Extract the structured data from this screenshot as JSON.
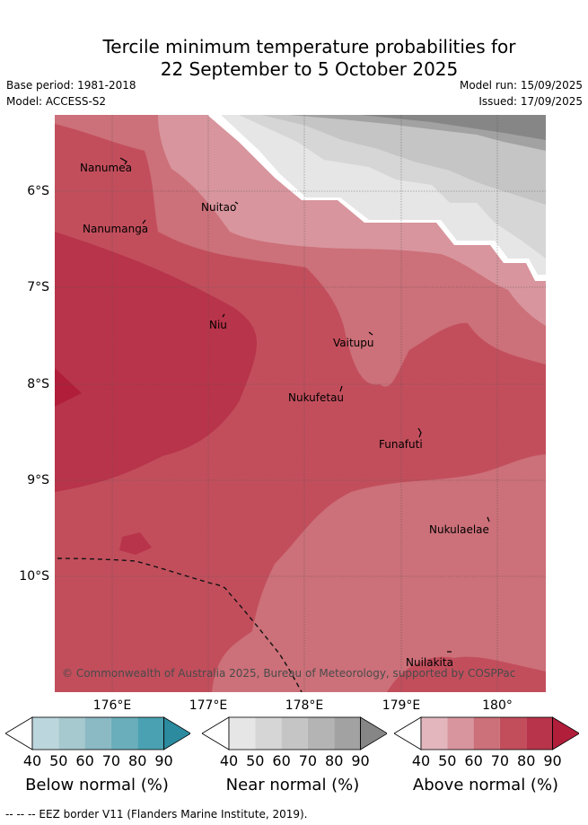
{
  "title_line1": "Tercile minimum temperature probabilities for",
  "title_line2": "22 September to 5 October 2025",
  "base_period": "Base period: 1981-2018",
  "model": "Model: ACCESS-S2",
  "model_run": "Model run: 15/09/2025",
  "issued": "Issued: 17/09/2025",
  "lat_labels": [
    "6°S",
    "7°S",
    "8°S",
    "9°S",
    "10°S"
  ],
  "lon_labels": [
    "176°E",
    "177°E",
    "178°E",
    "179°E",
    "180°"
  ],
  "places": [
    "Nanumea",
    "Nuitao",
    "Nanumanga",
    "Niu",
    "Vaitupu",
    "Nukufetau",
    "Funafuti",
    "Nukulaelae",
    "Nuilakita"
  ],
  "copyright": "© Commonwealth of Australia 2025, Bureau of Meteorology, supported by COSPPac",
  "colorbars": [
    {
      "title": "Below normal (%)",
      "ticks": [
        "40",
        "50",
        "60",
        "70",
        "80",
        "90"
      ],
      "colors": [
        "#ffffff",
        "#bcd6dd",
        "#a6c9cf",
        "#8bb9c4",
        "#6aaebb",
        "#4aa1b1",
        "#2c8b9e"
      ]
    },
    {
      "title": "Near normal (%)",
      "ticks": [
        "40",
        "50",
        "60",
        "70",
        "80",
        "90"
      ],
      "colors": [
        "#ffffff",
        "#e6e6e6",
        "#d6d6d6",
        "#c5c5c5",
        "#b4b4b4",
        "#a2a2a2",
        "#868686"
      ]
    },
    {
      "title": "Above normal (%)",
      "ticks": [
        "40",
        "50",
        "60",
        "70",
        "80",
        "90"
      ],
      "colors": [
        "#ffffff",
        "#e3b6bd",
        "#d8959d",
        "#cc7079",
        "#c24e5c",
        "#b8344a",
        "#b01e3a"
      ]
    }
  ],
  "footer": "-- -- -- EEZ border V11 (Flanders Marine Institute, 2019)."
}
